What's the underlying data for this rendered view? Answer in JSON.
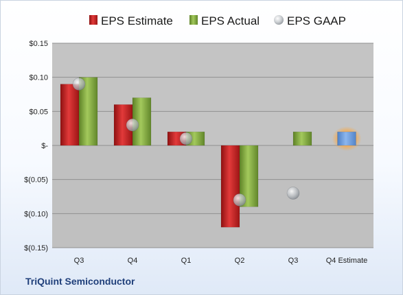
{
  "company": "TriQuint Semiconductor",
  "chart_data": {
    "type": "bar",
    "categories": [
      "Q3",
      "Q4",
      "Q1",
      "Q2",
      "Q3",
      "Q4 Estimate"
    ],
    "ylim": [
      -0.15,
      0.15
    ],
    "yticks": [
      {
        "value": 0.15,
        "label": "$0.15"
      },
      {
        "value": 0.1,
        "label": "$0.10"
      },
      {
        "value": 0.05,
        "label": "$0.05"
      },
      {
        "value": 0,
        "label": "$-"
      },
      {
        "value": -0.05,
        "label": "$(0.05)"
      },
      {
        "value": -0.1,
        "label": "$(0.10)"
      },
      {
        "value": -0.15,
        "label": "$(0.15)"
      }
    ],
    "grid": true,
    "legend_position": "top",
    "series": [
      {
        "name": "EPS Estimate",
        "kind": "bar",
        "color": "#d62a2a",
        "values": [
          0.09,
          0.06,
          0.02,
          -0.12,
          null,
          null
        ]
      },
      {
        "name": "EPS Actual",
        "kind": "bar",
        "color": "#8db545",
        "values": [
          0.1,
          0.07,
          0.02,
          -0.09,
          0.02,
          null
        ]
      },
      {
        "name": "EPS GAAP",
        "kind": "marker",
        "color": "#b5b9be",
        "values": [
          0.09,
          0.03,
          0.01,
          -0.08,
          -0.07,
          null
        ]
      }
    ],
    "estimate": {
      "category_index": 5,
      "value": 0.02,
      "color": "#6f9fe0",
      "glow_color": "#f6a94a"
    }
  }
}
